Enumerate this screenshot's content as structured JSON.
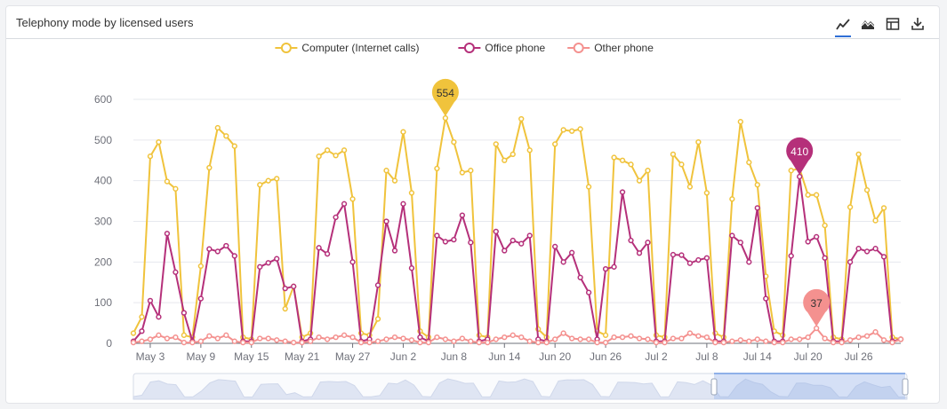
{
  "panel": {
    "title": "Telephony mode by licensed users"
  },
  "toolbar": {
    "buttons": [
      {
        "icon": "line-chart-icon",
        "active": true
      },
      {
        "icon": "area-chart-icon",
        "active": false
      },
      {
        "icon": "table-icon",
        "active": false
      },
      {
        "icon": "download-icon",
        "active": false
      }
    ]
  },
  "chart_data": {
    "type": "line",
    "title": "",
    "xlabel": "",
    "ylabel": "",
    "ylim": [
      0,
      600
    ],
    "yticks": [
      "0",
      "100",
      "200",
      "300",
      "400",
      "500",
      "600"
    ],
    "xticks": [
      {
        "label": "May 3",
        "index": 2
      },
      {
        "label": "May 9",
        "index": 8
      },
      {
        "label": "May 15",
        "index": 14
      },
      {
        "label": "May 21",
        "index": 20
      },
      {
        "label": "May 27",
        "index": 26
      },
      {
        "label": "Jun 2",
        "index": 32
      },
      {
        "label": "Jun 8",
        "index": 38
      },
      {
        "label": "Jun 14",
        "index": 44
      },
      {
        "label": "Jun 20",
        "index": 50
      },
      {
        "label": "Jun 26",
        "index": 56
      },
      {
        "label": "Jul 2",
        "index": 62
      },
      {
        "label": "Jul 8",
        "index": 68
      },
      {
        "label": "Jul 14",
        "index": 74
      },
      {
        "label": "Jul 20",
        "index": 80
      },
      {
        "label": "Jul 26",
        "index": 86
      }
    ],
    "legend_position": "top-center",
    "grid": true,
    "series": [
      {
        "name": "Computer (Internet calls)",
        "color": "#f0c33c",
        "values": [
          25,
          65,
          460,
          495,
          398,
          380,
          20,
          15,
          190,
          432,
          530,
          510,
          485,
          15,
          10,
          390,
          400,
          405,
          85,
          140,
          15,
          25,
          460,
          475,
          462,
          475,
          355,
          25,
          20,
          60,
          425,
          400,
          520,
          370,
          30,
          15,
          430,
          554,
          495,
          420,
          425,
          20,
          15,
          490,
          450,
          465,
          552,
          475,
          35,
          15,
          490,
          525,
          522,
          527,
          385,
          30,
          20,
          457,
          450,
          440,
          400,
          425,
          20,
          15,
          465,
          440,
          385,
          495,
          370,
          25,
          15,
          355,
          545,
          445,
          390,
          165,
          30,
          20,
          425,
          430,
          365,
          365,
          290,
          15,
          10,
          335,
          465,
          377,
          302,
          333,
          15,
          10
        ],
        "callout": {
          "index": 37,
          "label": "554"
        }
      },
      {
        "name": "Office phone",
        "color": "#b5307a",
        "values": [
          5,
          30,
          105,
          65,
          270,
          175,
          75,
          5,
          110,
          232,
          226,
          240,
          215,
          5,
          5,
          188,
          198,
          208,
          135,
          140,
          5,
          10,
          235,
          220,
          310,
          343,
          200,
          5,
          10,
          143,
          300,
          228,
          343,
          185,
          15,
          5,
          265,
          250,
          255,
          315,
          248,
          5,
          10,
          275,
          228,
          253,
          245,
          265,
          10,
          5,
          238,
          200,
          223,
          162,
          125,
          10,
          183,
          188,
          372,
          253,
          222,
          248,
          5,
          5,
          218,
          217,
          197,
          205,
          210,
          5,
          5,
          265,
          248,
          200,
          333,
          110,
          5,
          5,
          215,
          410,
          250,
          262,
          210,
          5,
          5,
          200,
          233,
          226,
          233,
          213,
          5,
          10
        ],
        "callout": {
          "index": 79,
          "label": "410"
        }
      },
      {
        "name": "Other phone",
        "color": "#f4918f",
        "values": [
          2,
          5,
          10,
          20,
          12,
          15,
          2,
          2,
          5,
          18,
          12,
          20,
          5,
          2,
          2,
          12,
          12,
          8,
          5,
          2,
          2,
          5,
          15,
          10,
          15,
          20,
          15,
          2,
          2,
          5,
          10,
          15,
          12,
          8,
          2,
          2,
          15,
          10,
          5,
          12,
          5,
          2,
          2,
          10,
          15,
          20,
          15,
          5,
          2,
          2,
          10,
          25,
          12,
          10,
          10,
          2,
          2,
          15,
          15,
          18,
          12,
          10,
          2,
          2,
          12,
          12,
          25,
          18,
          15,
          2,
          2,
          5,
          8,
          5,
          10,
          5,
          2,
          2,
          10,
          10,
          15,
          37,
          12,
          2,
          2,
          8,
          15,
          18,
          28,
          8,
          2,
          10
        ],
        "callout": {
          "index": 81,
          "label": "37"
        }
      }
    ]
  }
}
